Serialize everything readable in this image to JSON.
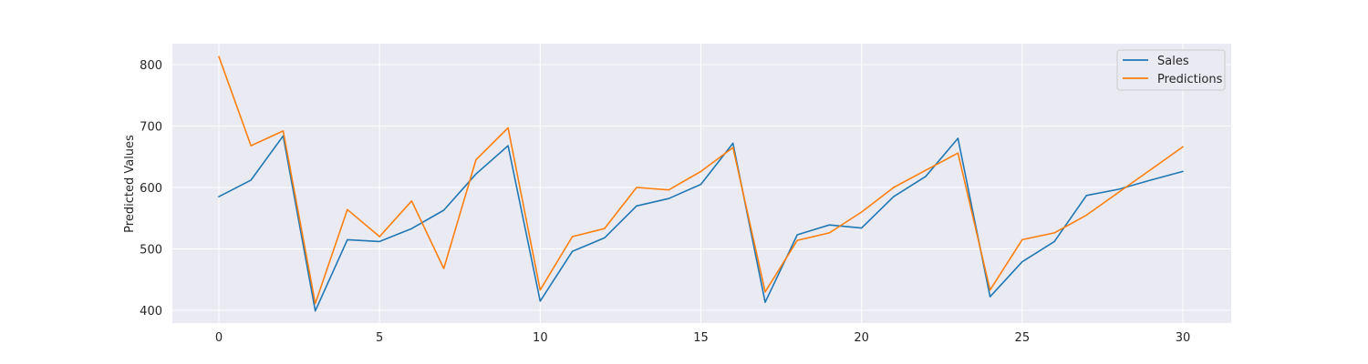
{
  "chart_data": {
    "type": "line",
    "title": "",
    "xlabel": "",
    "ylabel": "Predicted Values",
    "xlim": [
      -1.5,
      31.5
    ],
    "ylim": [
      380,
      832
    ],
    "x_ticks": [
      0,
      5,
      10,
      15,
      20,
      25,
      30
    ],
    "y_ticks": [
      400,
      500,
      600,
      700,
      800
    ],
    "grid": true,
    "legend_position": "top-right",
    "x": [
      0,
      1,
      2,
      3,
      4,
      5,
      6,
      7,
      8,
      9,
      10,
      11,
      12,
      13,
      14,
      15,
      16,
      17,
      18,
      19,
      20,
      21,
      22,
      23,
      24,
      25,
      26,
      27,
      28,
      29,
      30
    ],
    "series": [
      {
        "name": "Sales",
        "color": "#1f77b4",
        "values": [
          585,
          612,
          684,
          399,
          515,
          512,
          533,
          563,
          622,
          668,
          415,
          496,
          518,
          570,
          582,
          605,
          672,
          413,
          523,
          539,
          534,
          585,
          618,
          680,
          422,
          479,
          512,
          587,
          597,
          612,
          626
        ]
      },
      {
        "name": "Predictions",
        "color": "#ff7f0e",
        "values": [
          813,
          668,
          692,
          411,
          564,
          520,
          578,
          468,
          645,
          697,
          433,
          520,
          533,
          600,
          596,
          626,
          665,
          430,
          514,
          526,
          560,
          600,
          628,
          656,
          433,
          515,
          526,
          555,
          592,
          629,
          666
        ]
      }
    ]
  }
}
